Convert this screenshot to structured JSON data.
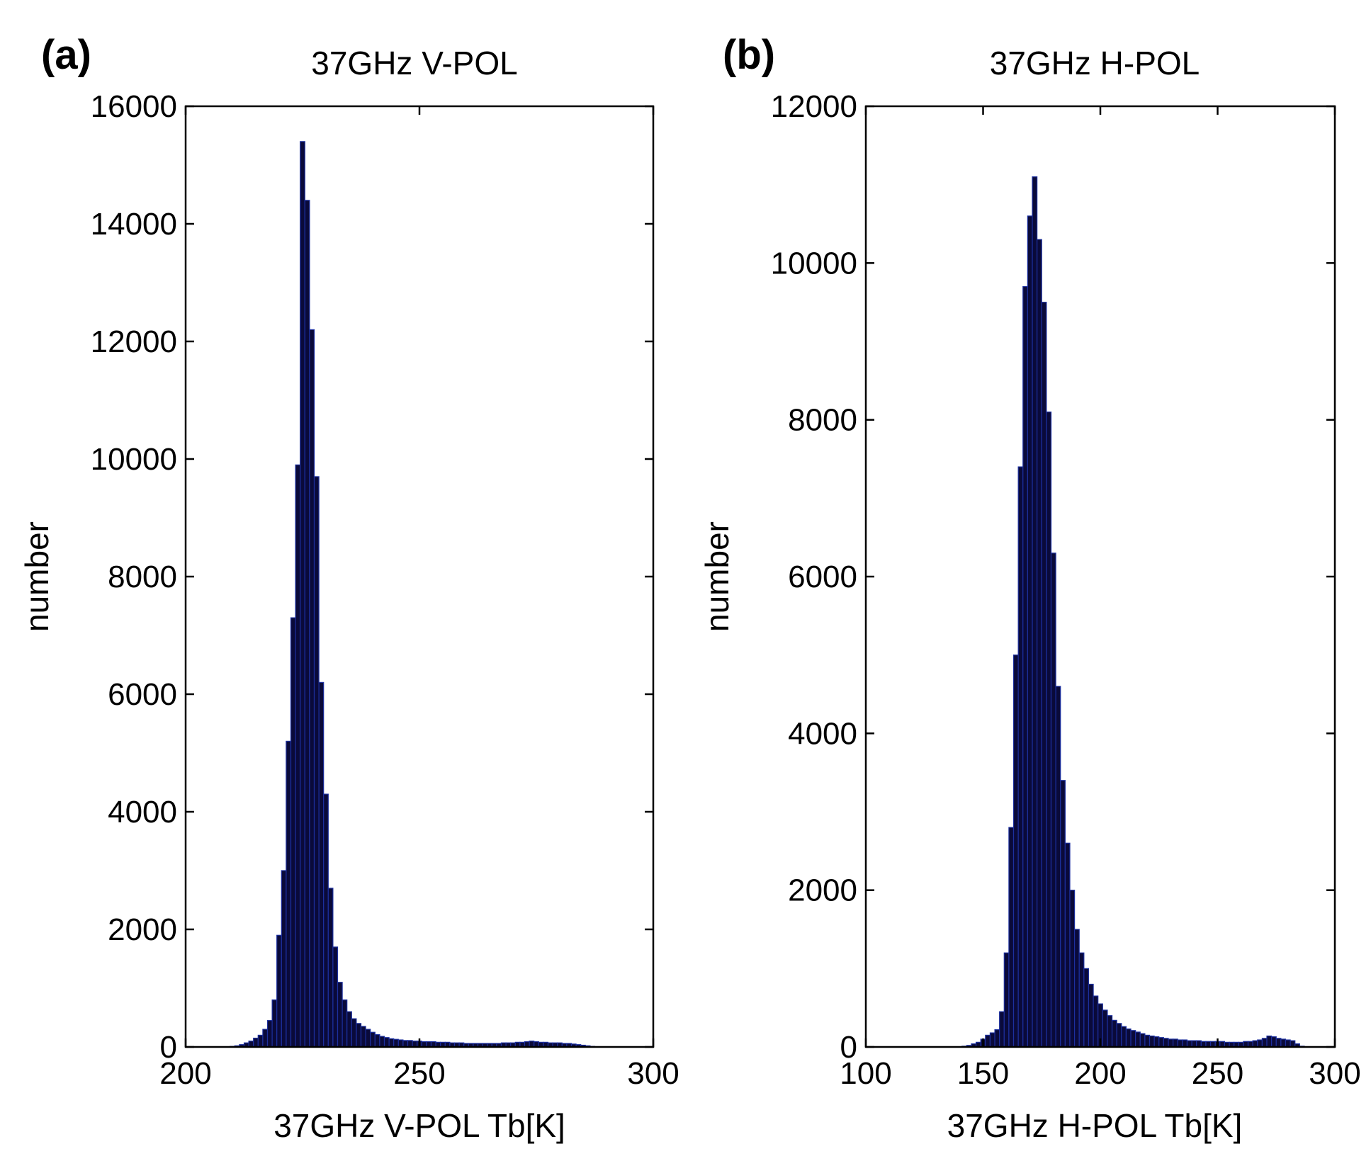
{
  "chart_data": [
    {
      "type": "bar",
      "panel_label": "(a)",
      "title": "37GHz V-POL",
      "xlabel": "37GHz V-POL Tb[K]",
      "ylabel": "number",
      "xlim": [
        200,
        300
      ],
      "ylim": [
        0,
        16000
      ],
      "xticks": [
        "200",
        "250",
        "300"
      ],
      "yticks": [
        "0",
        "2000",
        "4000",
        "6000",
        "8000",
        "10000",
        "12000",
        "14000",
        "16000"
      ],
      "grid": false,
      "bar_color": "#0a0a3a",
      "edge_color": "#1c2f9e",
      "bin_width": 1,
      "x": [
        210,
        211,
        212,
        213,
        214,
        215,
        216,
        217,
        218,
        219,
        220,
        221,
        222,
        223,
        224,
        225,
        226,
        227,
        228,
        229,
        230,
        231,
        232,
        233,
        234,
        235,
        236,
        237,
        238,
        239,
        240,
        241,
        242,
        243,
        244,
        245,
        246,
        247,
        248,
        249,
        250,
        251,
        252,
        253,
        254,
        255,
        256,
        257,
        258,
        259,
        260,
        261,
        262,
        263,
        264,
        265,
        266,
        267,
        268,
        269,
        270,
        271,
        272,
        273,
        274,
        275,
        276,
        277,
        278,
        279,
        280,
        281,
        282,
        283,
        284,
        285,
        286,
        287,
        288
      ],
      "values": [
        10,
        20,
        40,
        70,
        100,
        150,
        200,
        300,
        450,
        800,
        1900,
        3000,
        5200,
        7300,
        9900,
        15400,
        14400,
        12200,
        9700,
        6200,
        4300,
        2700,
        1700,
        1100,
        800,
        600,
        480,
        400,
        350,
        300,
        250,
        210,
        180,
        160,
        140,
        130,
        120,
        110,
        110,
        100,
        100,
        90,
        90,
        90,
        80,
        80,
        80,
        70,
        70,
        70,
        60,
        60,
        60,
        60,
        60,
        60,
        60,
        60,
        70,
        70,
        70,
        80,
        80,
        90,
        100,
        90,
        80,
        80,
        70,
        70,
        70,
        60,
        60,
        50,
        40,
        30,
        20,
        10,
        5
      ]
    },
    {
      "type": "bar",
      "panel_label": "(b)",
      "title": "37GHz H-POL",
      "xlabel": "37GHz H-POL Tb[K]",
      "ylabel": "number",
      "xlim": [
        100,
        300
      ],
      "ylim": [
        0,
        12000
      ],
      "xticks": [
        "100",
        "150",
        "200",
        "250",
        "300"
      ],
      "yticks": [
        "0",
        "2000",
        "4000",
        "6000",
        "8000",
        "10000",
        "12000"
      ],
      "grid": false,
      "bar_color": "#0a0a3a",
      "edge_color": "#1c2f9e",
      "bin_width": 2,
      "x": [
        142,
        144,
        146,
        148,
        150,
        152,
        154,
        156,
        158,
        160,
        162,
        164,
        166,
        168,
        170,
        172,
        174,
        176,
        178,
        180,
        182,
        184,
        186,
        188,
        190,
        192,
        194,
        196,
        198,
        200,
        202,
        204,
        206,
        208,
        210,
        212,
        214,
        216,
        218,
        220,
        222,
        224,
        226,
        228,
        230,
        232,
        234,
        236,
        238,
        240,
        242,
        244,
        246,
        248,
        250,
        252,
        254,
        256,
        258,
        260,
        262,
        264,
        266,
        268,
        270,
        272,
        274,
        276,
        278,
        280,
        282,
        284,
        286
      ],
      "values": [
        10,
        20,
        40,
        60,
        100,
        150,
        180,
        220,
        450,
        1200,
        2800,
        5000,
        7400,
        9700,
        10600,
        11100,
        10300,
        9500,
        8100,
        6300,
        4600,
        3400,
        2600,
        2000,
        1500,
        1200,
        1000,
        800,
        650,
        550,
        470,
        400,
        340,
        300,
        260,
        230,
        210,
        190,
        170,
        150,
        140,
        130,
        120,
        110,
        100,
        100,
        90,
        90,
        80,
        80,
        80,
        70,
        70,
        70,
        70,
        70,
        60,
        60,
        60,
        60,
        70,
        70,
        80,
        90,
        110,
        140,
        130,
        110,
        100,
        90,
        80,
        40,
        10
      ]
    }
  ]
}
